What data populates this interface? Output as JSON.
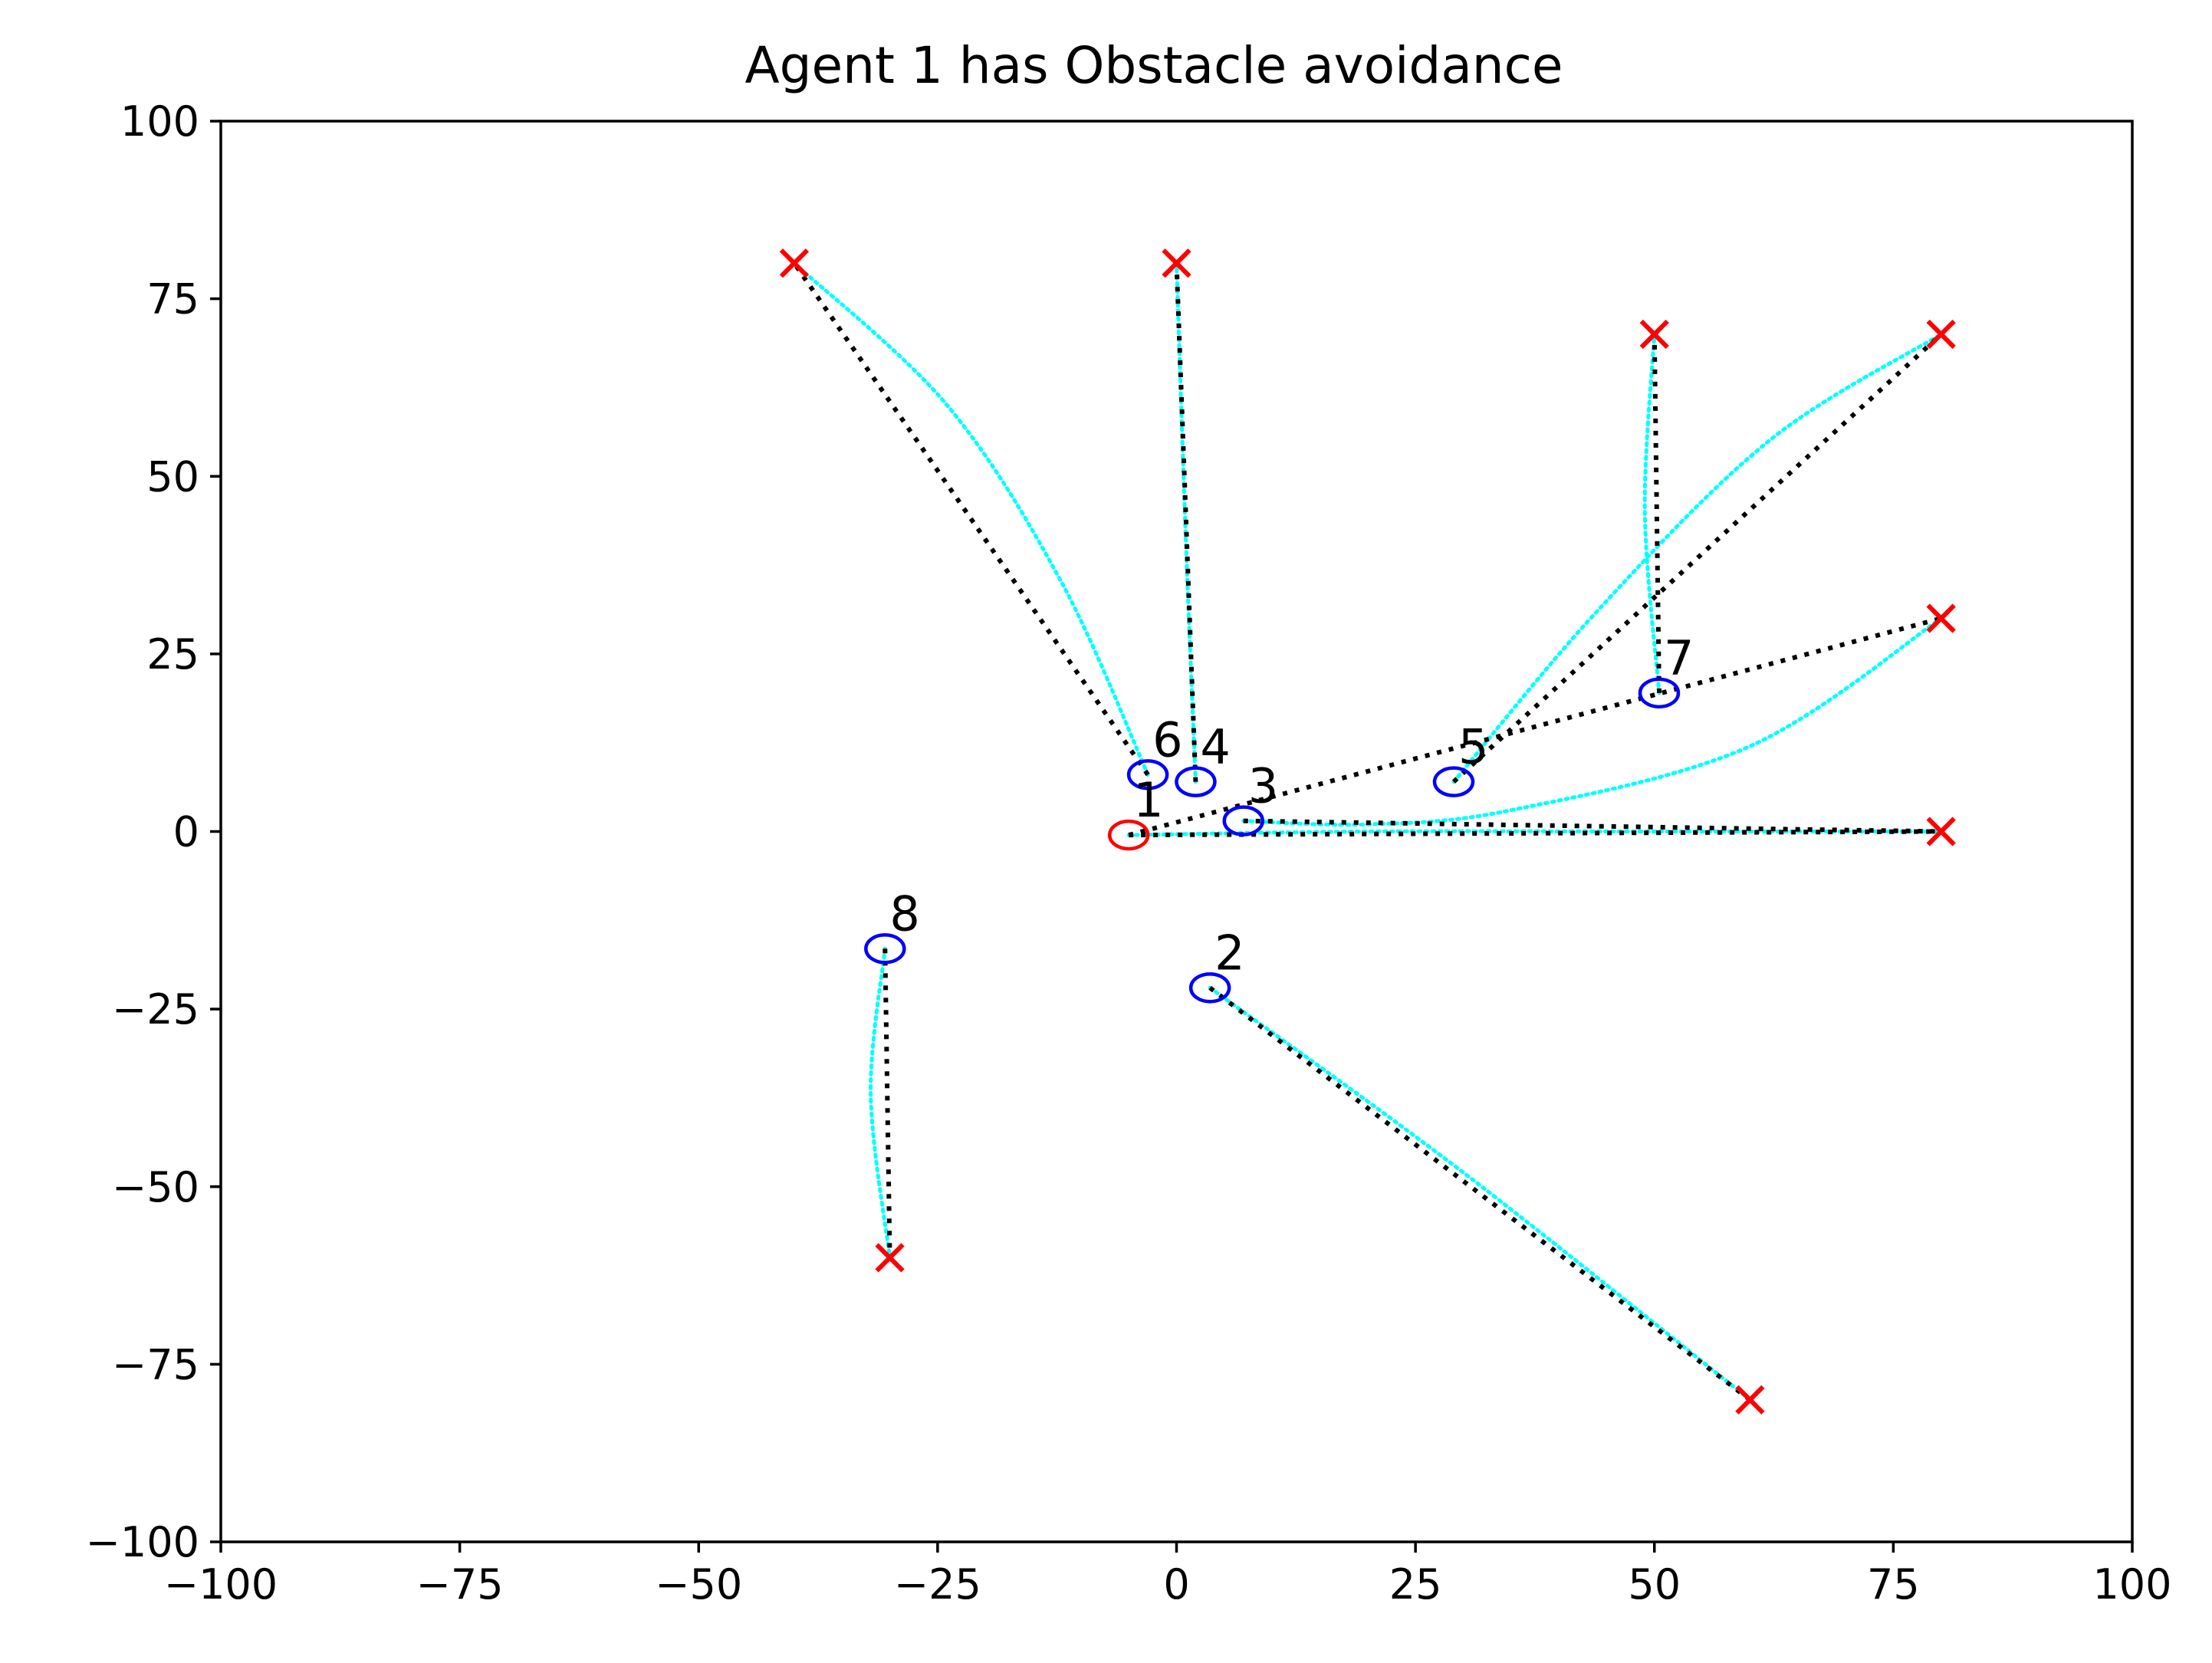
{
  "chart_data": {
    "type": "scatter",
    "title": "Agent 1 has Obstacle avoidance",
    "xlabel": "",
    "ylabel": "",
    "xlim": [
      -100,
      100
    ],
    "ylim": [
      -100,
      100
    ],
    "x_ticks": [
      -100,
      -75,
      -50,
      -25,
      0,
      25,
      50,
      75,
      100
    ],
    "y_ticks": [
      -100,
      -75,
      -50,
      -25,
      0,
      25,
      50,
      75,
      100
    ],
    "x_tick_labels": [
      "−100",
      "−75",
      "−50",
      "−25",
      "0",
      "25",
      "50",
      "75",
      "100"
    ],
    "y_tick_labels": [
      "−100",
      "−75",
      "−50",
      "−25",
      "0",
      "25",
      "50",
      "75",
      "100"
    ],
    "grid": false,
    "colors": {
      "planned_path": "#000000",
      "actual_path": "#00ffff",
      "goal_marker": "#ff0000",
      "agent_with_avoidance": "#ff0000",
      "other_agent": "#0000ff"
    },
    "agents": [
      {
        "label": "1",
        "position": [
          -5,
          -0.5
        ],
        "goal": [
          80,
          0
        ],
        "color": "#ff0000",
        "planned": [
          [
            -5,
            -0.5
          ],
          [
            80,
            0
          ]
        ],
        "actual": [
          [
            -5,
            -0.5
          ],
          [
            20,
            0
          ],
          [
            50,
            0
          ],
          [
            80,
            0
          ]
        ]
      },
      {
        "label": "2",
        "position": [
          3.5,
          -22
        ],
        "goal": [
          60,
          -80
        ],
        "color": "#0000ff",
        "planned": [
          [
            3.5,
            -22
          ],
          [
            60,
            -80
          ]
        ],
        "actual": [
          [
            3.5,
            -22
          ],
          [
            30,
            -48
          ],
          [
            60,
            -80
          ]
        ]
      },
      {
        "label": "3",
        "position": [
          7,
          1.5
        ],
        "goal": [
          80,
          30
        ],
        "color": "#0000ff",
        "planned": [
          [
            7,
            1.5
          ],
          [
            80,
            0
          ]
        ],
        "actual": [
          [
            7,
            1.5
          ],
          [
            20,
            1
          ],
          [
            35,
            3
          ],
          [
            60,
            12
          ],
          [
            80,
            30
          ]
        ]
      },
      {
        "label": "4",
        "position": [
          2,
          7
        ],
        "goal": [
          0,
          80
        ],
        "color": "#0000ff",
        "planned": [
          [
            2,
            7
          ],
          [
            0,
            80
          ]
        ],
        "actual": [
          [
            2,
            7
          ],
          [
            1,
            40
          ],
          [
            0,
            80
          ]
        ]
      },
      {
        "label": "5",
        "position": [
          29,
          7
        ],
        "goal": [
          80,
          70
        ],
        "color": "#0000ff",
        "planned": [
          [
            29,
            7
          ],
          [
            80,
            70
          ]
        ],
        "actual": [
          [
            29,
            7
          ],
          [
            44,
            31
          ],
          [
            62,
            55
          ],
          [
            80,
            70
          ]
        ]
      },
      {
        "label": "6",
        "position": [
          -3,
          8
        ],
        "goal": [
          -40,
          80
        ],
        "color": "#0000ff",
        "planned": [
          [
            -3,
            8
          ],
          [
            -40,
            80
          ]
        ],
        "actual": [
          [
            -3,
            8
          ],
          [
            -12,
            35
          ],
          [
            -24,
            60
          ],
          [
            -40,
            80
          ]
        ]
      },
      {
        "label": "7",
        "position": [
          50.5,
          19.5
        ],
        "goal": [
          50,
          70
        ],
        "color": "#0000ff",
        "planned": [
          [
            50.5,
            19.5
          ],
          [
            50,
            70
          ]
        ],
        "actual": [
          [
            50.5,
            19.5
          ],
          [
            49,
            45
          ],
          [
            50,
            70
          ]
        ]
      },
      {
        "label": "8",
        "position": [
          -30.5,
          -16.5
        ],
        "goal": [
          -30,
          -60
        ],
        "color": "#0000ff",
        "planned": [
          [
            -30.5,
            -16.5
          ],
          [
            -30,
            -60
          ]
        ],
        "actual": [
          [
            -30.5,
            -16.5
          ],
          [
            -32,
            -37
          ],
          [
            -30,
            -60
          ]
        ]
      }
    ],
    "extra_planned_segments": [
      [
        [
          -5,
          -0.5
        ],
        [
          80,
          30
        ]
      ]
    ]
  }
}
